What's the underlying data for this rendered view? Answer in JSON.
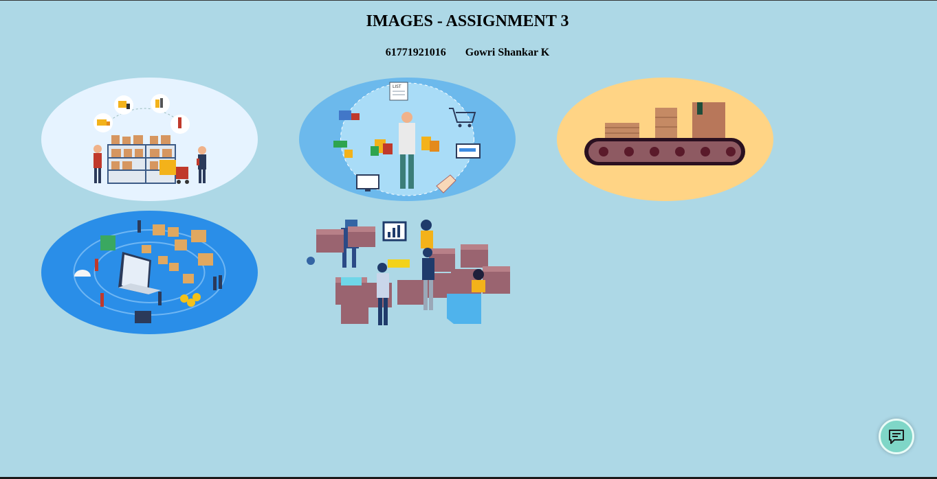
{
  "page": {
    "title": "IMAGES - ASSIGNMENT 3",
    "student_id": "61771921016",
    "student_name": "Gowri Shankar K"
  },
  "images": [
    {
      "name": "warehouse-logistics-illustration",
      "background": "#e6f3ff"
    },
    {
      "name": "shopping-customer-illustration",
      "background": "#6cb9ec"
    },
    {
      "name": "conveyor-belt-illustration",
      "background": "#ffd485"
    },
    {
      "name": "inventory-management-illustration",
      "background": "#2a8ee8"
    },
    {
      "name": "team-packages-illustration",
      "background": "#add8e6"
    }
  ],
  "icons": {
    "chat": "chat-icon"
  },
  "labels": {
    "list_tag": "LIST"
  }
}
